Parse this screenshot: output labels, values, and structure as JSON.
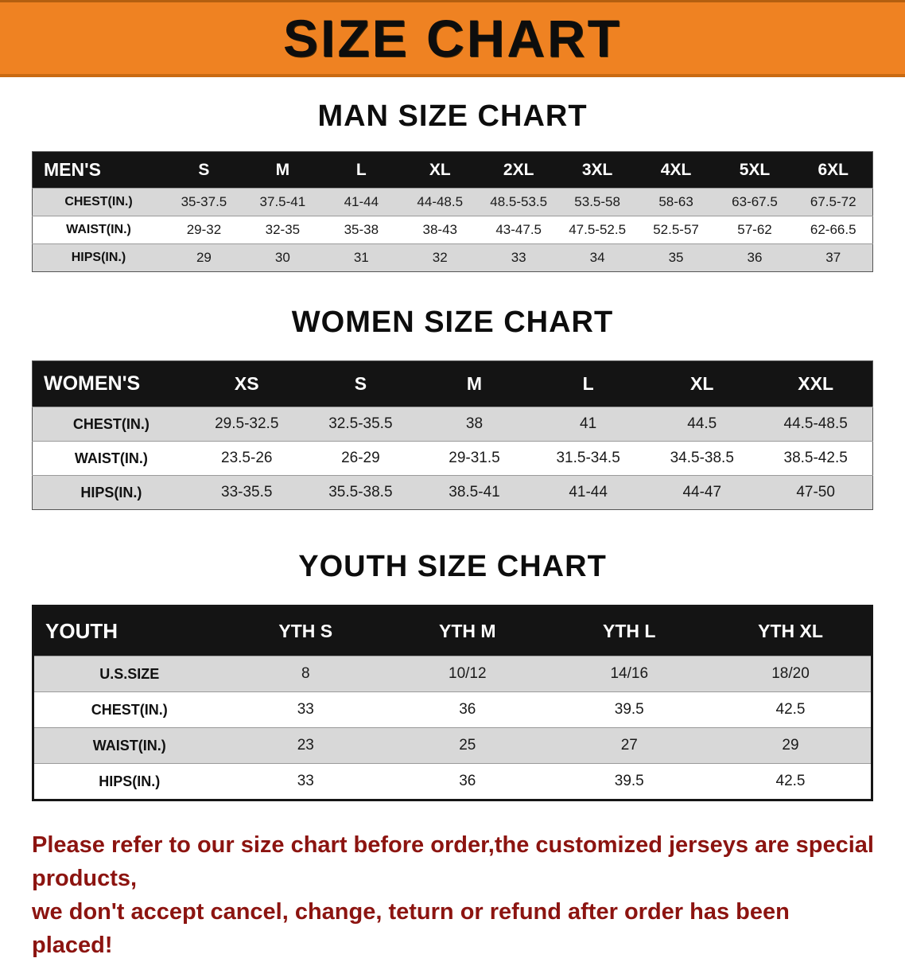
{
  "banner": {
    "title": "SIZE CHART",
    "background_color": "#ef8222",
    "text_color": "#0d0d0d"
  },
  "sections": [
    {
      "title": "MAN SIZE CHART",
      "header": [
        "MEN'S",
        "S",
        "M",
        "L",
        "XL",
        "2XL",
        "3XL",
        "4XL",
        "5XL",
        "6XL"
      ],
      "rows": [
        [
          "CHEST(IN.)",
          "35-37.5",
          "37.5-41",
          "41-44",
          "44-48.5",
          "48.5-53.5",
          "53.5-58",
          "58-63",
          "63-67.5",
          "67.5-72"
        ],
        [
          "WAIST(IN.)",
          "29-32",
          "32-35",
          "35-38",
          "38-43",
          "43-47.5",
          "47.5-52.5",
          "52.5-57",
          "57-62",
          "62-66.5"
        ],
        [
          "HIPS(IN.)",
          "29",
          "30",
          "31",
          "32",
          "33",
          "34",
          "35",
          "36",
          "37"
        ]
      ]
    },
    {
      "title": "WOMEN SIZE CHART",
      "header": [
        "WOMEN'S",
        "XS",
        "S",
        "M",
        "L",
        "XL",
        "XXL"
      ],
      "rows": [
        [
          "CHEST(IN.)",
          "29.5-32.5",
          "32.5-35.5",
          "38",
          "41",
          "44.5",
          "44.5-48.5"
        ],
        [
          "WAIST(IN.)",
          "23.5-26",
          "26-29",
          "29-31.5",
          "31.5-34.5",
          "34.5-38.5",
          "38.5-42.5"
        ],
        [
          "HIPS(IN.)",
          "33-35.5",
          "35.5-38.5",
          "38.5-41",
          "41-44",
          "44-47",
          "47-50"
        ]
      ]
    },
    {
      "title": "YOUTH SIZE CHART",
      "header": [
        "YOUTH",
        "YTH S",
        "YTH M",
        "YTH L",
        "YTH XL"
      ],
      "rows": [
        [
          "U.S.SIZE",
          "8",
          "10/12",
          "14/16",
          "18/20"
        ],
        [
          "CHEST(IN.)",
          "33",
          "36",
          "39.5",
          "42.5"
        ],
        [
          "WAIST(IN.)",
          "23",
          "25",
          "27",
          "29"
        ],
        [
          "HIPS(IN.)",
          "33",
          "36",
          "39.5",
          "42.5"
        ]
      ]
    }
  ],
  "footer": {
    "line1": "Please refer to our size chart before order,the customized jerseys are special products,",
    "line2": "we don't accept cancel, change, teturn or refund after order has been placed!",
    "text_color": "#8c1410"
  }
}
